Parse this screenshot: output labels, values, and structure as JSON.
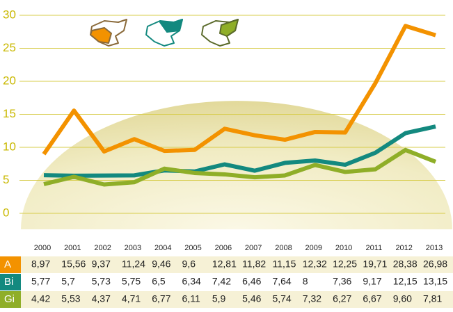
{
  "chart_data": {
    "type": "line",
    "categories": [
      "2000",
      "2001",
      "2002",
      "2003",
      "2004",
      "2005",
      "2006",
      "2007",
      "2008",
      "2009",
      "2010",
      "2011",
      "2012",
      "2013"
    ],
    "series": [
      {
        "name": "A",
        "color": "#f39200",
        "values": [
          8.97,
          15.56,
          9.37,
          11.24,
          9.46,
          9.6,
          12.81,
          11.82,
          11.15,
          12.32,
          12.25,
          19.71,
          28.38,
          26.98
        ],
        "value_labels": [
          "8,97",
          "15,56",
          "9,37",
          "11,24",
          "9,46",
          "9,6",
          "12,81",
          "11,82",
          "11,15",
          "12,32",
          "12,25",
          "19,71",
          "28,38",
          "26,98"
        ]
      },
      {
        "name": "Bi",
        "color": "#13897f",
        "values": [
          5.77,
          5.7,
          5.73,
          5.75,
          6.5,
          6.34,
          7.42,
          6.46,
          7.64,
          8,
          7.36,
          9.17,
          12.15,
          13.15
        ],
        "value_labels": [
          "5,77",
          "5,7",
          "5,73",
          "5,75",
          "6,5",
          "6,34",
          "7,42",
          "6,46",
          "7,64",
          "8",
          "7,36",
          "9,17",
          "12,15",
          "13,15"
        ]
      },
      {
        "name": "Gi",
        "color": "#8fae28",
        "values": [
          4.42,
          5.53,
          4.37,
          4.71,
          6.77,
          6.11,
          5.9,
          5.46,
          5.74,
          7.32,
          6.27,
          6.67,
          9.6,
          7.81
        ],
        "value_labels": [
          "4,42",
          "5,53",
          "4,37",
          "4,71",
          "6,77",
          "6,11",
          "5,9",
          "5,46",
          "5,74",
          "7,32",
          "6,27",
          "6,67",
          "9,60",
          "7,81"
        ]
      }
    ],
    "ylim": [
      0,
      30
    ],
    "yticks": [
      0,
      5,
      10,
      15,
      20,
      25,
      30
    ],
    "grid": true
  }
}
